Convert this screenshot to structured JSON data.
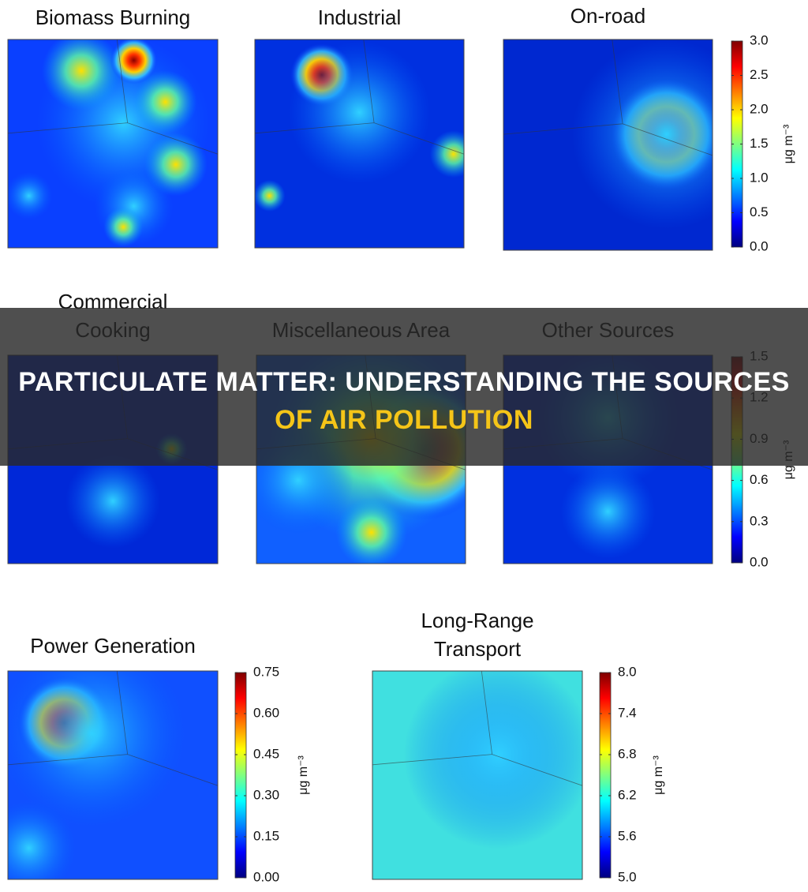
{
  "banner": {
    "line1": "PARTICULATE MATTER: UNDERSTANDING THE SOURCES",
    "line2": "OF AIR POLLUTION"
  },
  "panels": [
    {
      "title": [
        "Biomass Burning"
      ]
    },
    {
      "title": [
        "Industrial"
      ]
    },
    {
      "title": [
        "On-road"
      ]
    },
    {
      "title": [
        "Commercial",
        "Cooking"
      ]
    },
    {
      "title": [
        "Miscellaneous Area"
      ]
    },
    {
      "title": [
        "Other Sources"
      ]
    },
    {
      "title": [
        "Power Generation"
      ]
    },
    {
      "title": [
        "Long-Range",
        "Transport"
      ]
    }
  ],
  "colorbars": [
    {
      "unit": "μg m⁻³",
      "ticks": [
        {
          "value": 0,
          "label": "0.0"
        },
        0.5,
        {
          "value": 1,
          "label": "1.0"
        },
        1.5,
        {
          "value": 2,
          "label": "2.0"
        },
        2.5,
        {
          "value": 3,
          "label": "3.0"
        }
      ]
    },
    {
      "unit": "μg m⁻³",
      "ticks": [
        {
          "value": 0,
          "label": "0.0"
        },
        0.3,
        0.6,
        0.9,
        1.2,
        1.5
      ]
    },
    {
      "unit": "μg m⁻³",
      "ticks": [
        {
          "value": 0,
          "label": "0.00"
        },
        0.15,
        {
          "value": 0.3,
          "label": "0.30"
        },
        0.45,
        {
          "value": 0.6,
          "label": "0.60"
        },
        0.75
      ]
    },
    {
      "unit": "μg m⁻³",
      "ticks": [
        {
          "value": 5,
          "label": "5.0"
        },
        5.6,
        6.2,
        6.8,
        7.4,
        {
          "value": 8,
          "label": "8.0"
        }
      ]
    }
  ]
}
